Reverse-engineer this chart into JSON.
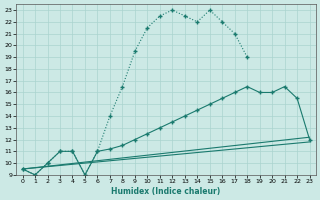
{
  "xlabel": "Humidex (Indice chaleur)",
  "xlim": [
    -0.5,
    23.5
  ],
  "ylim": [
    9,
    23.5
  ],
  "xticks": [
    0,
    1,
    2,
    3,
    4,
    5,
    6,
    7,
    8,
    9,
    10,
    11,
    12,
    13,
    14,
    15,
    16,
    17,
    18,
    19,
    20,
    21,
    22,
    23
  ],
  "yticks": [
    9,
    10,
    11,
    12,
    13,
    14,
    15,
    16,
    17,
    18,
    19,
    20,
    21,
    22,
    23
  ],
  "bg_color": "#cce9e5",
  "grid_color": "#aad4cf",
  "line_color": "#1a7a6e",
  "line1_x": [
    0,
    1,
    2,
    3,
    4,
    5,
    6,
    7,
    8,
    9,
    10,
    11,
    12,
    13,
    14,
    15,
    16,
    17,
    18
  ],
  "line1_y": [
    9.5,
    9.0,
    10.0,
    11.0,
    11.0,
    9.0,
    11.0,
    14.0,
    16.5,
    19.5,
    21.5,
    22.5,
    23.0,
    22.5,
    22.0,
    23.0,
    22.0,
    21.0,
    19.0
  ],
  "line2_x": [
    0,
    1,
    2,
    3,
    4,
    5,
    6,
    7,
    8,
    9,
    10,
    11,
    12,
    13,
    14,
    15,
    16,
    17,
    18,
    19,
    20,
    21,
    22,
    23
  ],
  "line2_y": [
    9.5,
    9.0,
    10.0,
    11.0,
    11.0,
    9.0,
    11.0,
    11.2,
    11.5,
    12.0,
    12.5,
    13.0,
    13.5,
    14.0,
    14.5,
    15.0,
    15.5,
    16.0,
    16.5,
    16.0,
    16.0,
    16.5,
    15.5,
    12.0
  ],
  "line3_x": [
    0,
    23
  ],
  "line3_y": [
    9.5,
    12.0
  ],
  "line4_x": [
    0,
    23
  ],
  "line4_y": [
    9.5,
    12.0
  ]
}
